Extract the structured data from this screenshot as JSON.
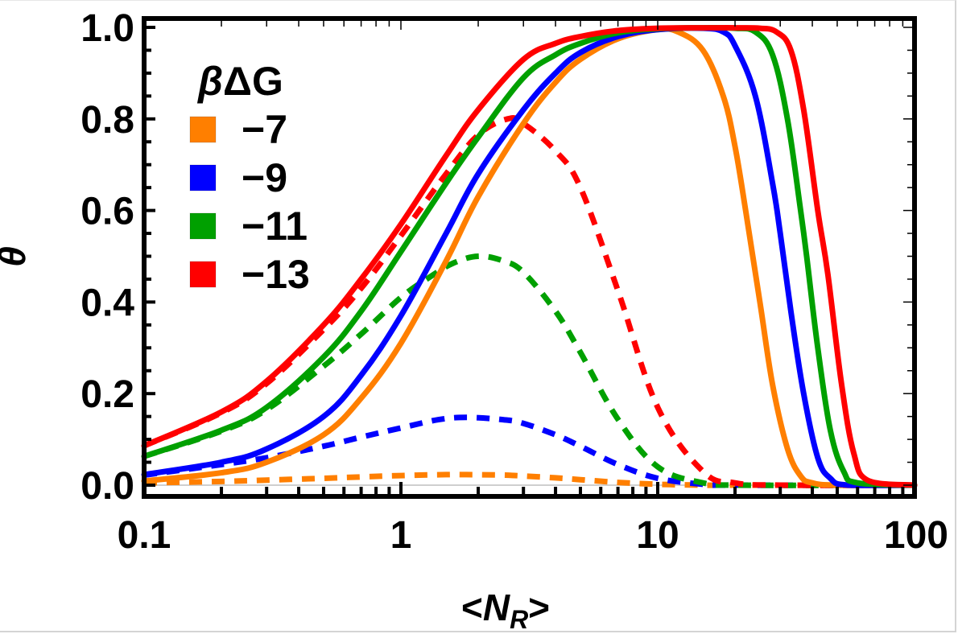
{
  "chart_data": {
    "type": "line",
    "title": "",
    "xlabel": "<N_R>",
    "xlabel_main": "N",
    "xlabel_sub": "R",
    "xlabel_open": "<",
    "xlabel_close": ">",
    "ylabel": "θ",
    "xscale": "log",
    "xlim": [
      0.1,
      100
    ],
    "ylim": [
      0.0,
      1.0
    ],
    "x_ticks": [
      0.1,
      1,
      10,
      100
    ],
    "x_tick_labels": [
      "0.1",
      "1",
      "10",
      "100"
    ],
    "y_ticks": [
      0.0,
      0.2,
      0.4,
      0.6,
      0.8,
      1.0
    ],
    "y_tick_labels": [
      "0.0",
      "0.2",
      "0.4",
      "0.6",
      "0.8",
      "1.0"
    ],
    "grid": false,
    "reference_line_y": 0.0,
    "legend": {
      "title": "βΔG",
      "title_beta": "β",
      "title_rest": "ΔG",
      "placement": "top-left",
      "entries": [
        {
          "label": "−7",
          "color": "#FF7F00"
        },
        {
          "label": "−9",
          "color": "#0000FF"
        },
        {
          "label": "−11",
          "color": "#00A000"
        },
        {
          "label": "−13",
          "color": "#FF0000"
        }
      ]
    },
    "series": [
      {
        "name": "−7 solid",
        "legend": "−7",
        "style": "solid",
        "color": "#FF7F00",
        "x": [
          0.1,
          0.2,
          0.3,
          0.5,
          0.7,
          1,
          1.5,
          2,
          3,
          4,
          5,
          7,
          10,
          12,
          15,
          18,
          20,
          22,
          25,
          28,
          32,
          36,
          40,
          50,
          100
        ],
        "y": [
          0.009,
          0.027,
          0.05,
          0.11,
          0.19,
          0.31,
          0.49,
          0.63,
          0.79,
          0.88,
          0.93,
          0.975,
          0.995,
          0.99,
          0.95,
          0.85,
          0.74,
          0.6,
          0.4,
          0.22,
          0.08,
          0.02,
          0.005,
          0.0,
          0.0
        ]
      },
      {
        "name": "−9 solid",
        "legend": "−9",
        "style": "solid",
        "color": "#0000FF",
        "x": [
          0.1,
          0.2,
          0.3,
          0.5,
          0.7,
          1,
          1.5,
          2,
          3,
          4,
          5,
          7,
          10,
          15,
          18,
          20,
          24,
          28,
          30,
          33,
          37,
          42,
          47,
          55,
          100
        ],
        "y": [
          0.023,
          0.05,
          0.079,
          0.15,
          0.24,
          0.37,
          0.55,
          0.68,
          0.82,
          0.9,
          0.945,
          0.98,
          0.995,
          0.998,
          0.99,
          0.96,
          0.85,
          0.66,
          0.55,
          0.38,
          0.2,
          0.06,
          0.015,
          0.0,
          0.0
        ]
      },
      {
        "name": "−11 solid",
        "legend": "−11",
        "style": "solid",
        "color": "#00A000",
        "x": [
          0.1,
          0.2,
          0.3,
          0.5,
          0.7,
          1,
          1.5,
          2,
          3,
          4,
          5,
          7,
          10,
          15,
          20,
          24,
          28,
          32,
          36,
          38,
          42,
          47,
          53,
          60,
          100
        ],
        "y": [
          0.063,
          0.12,
          0.17,
          0.28,
          0.38,
          0.51,
          0.66,
          0.76,
          0.89,
          0.94,
          0.965,
          0.988,
          0.997,
          0.999,
          0.998,
          0.99,
          0.94,
          0.8,
          0.6,
          0.5,
          0.3,
          0.12,
          0.03,
          0.005,
          0.0
        ]
      },
      {
        "name": "−13 solid",
        "legend": "−13",
        "style": "solid",
        "color": "#FF0000",
        "x": [
          0.1,
          0.2,
          0.3,
          0.5,
          0.7,
          1,
          1.5,
          2,
          3,
          4,
          5,
          7,
          10,
          15,
          20,
          25,
          29,
          33,
          37,
          42,
          46,
          52,
          58,
          66,
          100
        ],
        "y": [
          0.086,
          0.16,
          0.227,
          0.35,
          0.45,
          0.57,
          0.72,
          0.82,
          0.93,
          0.965,
          0.98,
          0.993,
          0.998,
          0.999,
          0.999,
          0.998,
          0.99,
          0.95,
          0.82,
          0.6,
          0.46,
          0.22,
          0.07,
          0.01,
          0.0
        ]
      },
      {
        "name": "−7 dashed",
        "legend": "−7",
        "style": "dashed",
        "color": "#FF7F00",
        "x": [
          0.1,
          0.2,
          0.3,
          0.5,
          0.7,
          1,
          1.5,
          1.8,
          2.5,
          3,
          4,
          5,
          7,
          10,
          15,
          20,
          100
        ],
        "y": [
          0.005,
          0.008,
          0.011,
          0.015,
          0.018,
          0.021,
          0.023,
          0.023,
          0.022,
          0.02,
          0.016,
          0.012,
          0.006,
          0.002,
          0.0,
          0.0,
          0.0
        ]
      },
      {
        "name": "−9 dashed",
        "legend": "−9",
        "style": "dashed",
        "color": "#0000FF",
        "x": [
          0.1,
          0.2,
          0.3,
          0.5,
          0.7,
          1,
          1.4,
          1.8,
          2.5,
          3,
          4,
          5,
          7,
          10,
          15,
          20,
          100
        ],
        "y": [
          0.022,
          0.045,
          0.06,
          0.085,
          0.105,
          0.125,
          0.143,
          0.148,
          0.143,
          0.135,
          0.11,
          0.085,
          0.045,
          0.015,
          0.002,
          0.0,
          0.0
        ]
      },
      {
        "name": "−11 dashed",
        "legend": "−11",
        "style": "dashed",
        "color": "#00A000",
        "x": [
          0.1,
          0.2,
          0.3,
          0.5,
          0.7,
          1,
          1.3,
          1.6,
          2,
          2.5,
          3,
          4,
          5,
          7,
          10,
          15,
          20,
          100
        ],
        "y": [
          0.063,
          0.118,
          0.165,
          0.26,
          0.33,
          0.41,
          0.455,
          0.485,
          0.5,
          0.49,
          0.465,
          0.38,
          0.29,
          0.144,
          0.04,
          0.005,
          0.0,
          0.0
        ]
      },
      {
        "name": "−13 dashed",
        "legend": "−13",
        "style": "dashed",
        "color": "#FF0000",
        "x": [
          0.1,
          0.2,
          0.3,
          0.5,
          0.7,
          1,
          1.5,
          2,
          2.6,
          3,
          4,
          5,
          7,
          10,
          15,
          20,
          30,
          100
        ],
        "y": [
          0.086,
          0.158,
          0.222,
          0.34,
          0.43,
          0.545,
          0.68,
          0.765,
          0.8,
          0.79,
          0.73,
          0.65,
          0.425,
          0.17,
          0.03,
          0.005,
          0.0,
          0.0
        ]
      }
    ]
  }
}
